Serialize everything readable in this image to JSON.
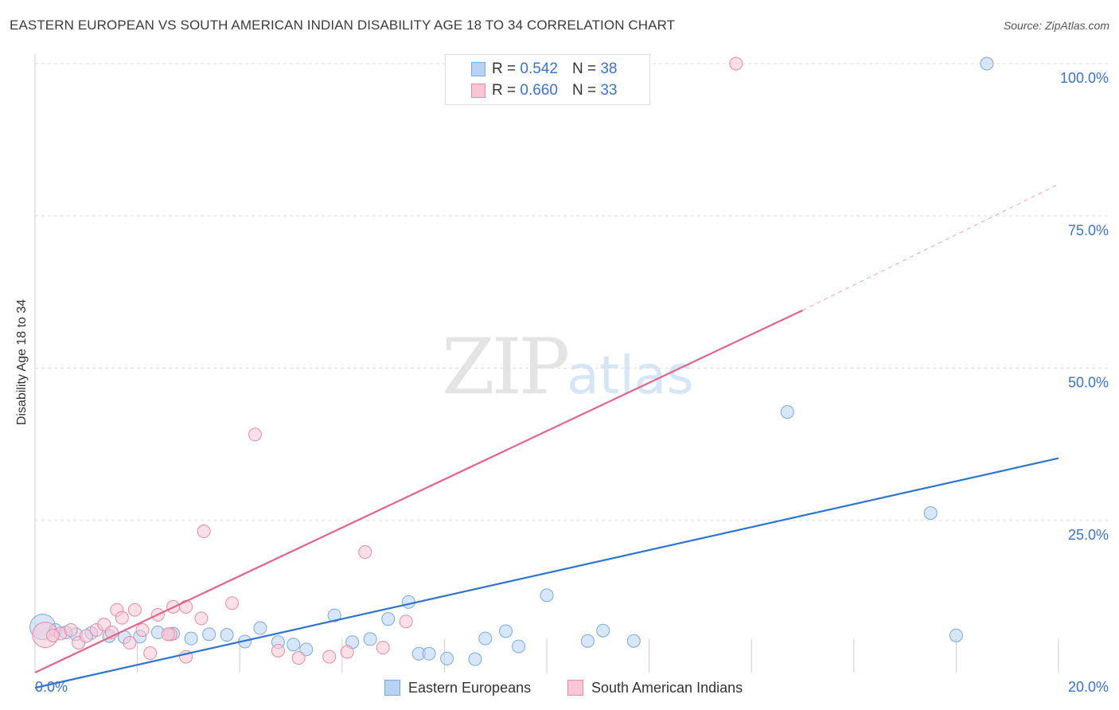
{
  "title": "EASTERN EUROPEAN VS SOUTH AMERICAN INDIAN DISABILITY AGE 18 TO 34 CORRELATION CHART",
  "source": "Source: ZipAtlas.com",
  "watermark": {
    "zip": "ZIP",
    "atlas": "atlas"
  },
  "legend": {
    "r_label": "R =",
    "n_label": "N =",
    "rows": [
      {
        "name": "Eastern Europeans",
        "r": "0.542",
        "n": "38"
      },
      {
        "name": "South American Indians",
        "r": "0.660",
        "n": "33"
      }
    ]
  },
  "colors": {
    "blue_fill": "#b8d3f1",
    "blue_stroke": "#7aa8dd",
    "blue_line": "#2f73d2",
    "pink_fill": "#f8c6d4",
    "pink_stroke": "#e58aa8",
    "pink_line": "#e0648c",
    "grid": "#dddddd",
    "tick_text": "#3a74c7"
  },
  "chart_data": {
    "type": "scatter",
    "title": "EASTERN EUROPEAN VS SOUTH AMERICAN INDIAN DISABILITY AGE 18 TO 34 CORRELATION CHART",
    "xlabel": "",
    "ylabel": "Disability Age 18 to 34",
    "xlim": [
      0,
      20
    ],
    "ylim": [
      0,
      100
    ],
    "x_tick_labels": [
      {
        "value": 0,
        "label": "0.0%"
      },
      {
        "value": 20,
        "label": "20.0%"
      }
    ],
    "y_ticks": [
      {
        "value": 25,
        "label": "25.0%"
      },
      {
        "value": 50,
        "label": "50.0%"
      },
      {
        "value": 75,
        "label": "75.0%"
      },
      {
        "value": 100,
        "label": "100.0%"
      }
    ],
    "series": [
      {
        "name": "Eastern Europeans",
        "color": "blue",
        "points": [
          {
            "x": 0.15,
            "y": 7.5,
            "big": true
          },
          {
            "x": 0.4,
            "y": 7.0
          },
          {
            "x": 0.8,
            "y": 6.3
          },
          {
            "x": 1.1,
            "y": 6.5
          },
          {
            "x": 1.45,
            "y": 6.0
          },
          {
            "x": 1.75,
            "y": 5.8
          },
          {
            "x": 2.05,
            "y": 5.9
          },
          {
            "x": 2.4,
            "y": 6.6
          },
          {
            "x": 2.7,
            "y": 6.4
          },
          {
            "x": 3.05,
            "y": 5.6
          },
          {
            "x": 3.4,
            "y": 6.3
          },
          {
            "x": 3.75,
            "y": 6.2
          },
          {
            "x": 4.1,
            "y": 5.1
          },
          {
            "x": 4.4,
            "y": 7.3
          },
          {
            "x": 4.75,
            "y": 5.0
          },
          {
            "x": 5.05,
            "y": 4.6
          },
          {
            "x": 5.3,
            "y": 3.8
          },
          {
            "x": 5.85,
            "y": 9.4
          },
          {
            "x": 6.2,
            "y": 5.0
          },
          {
            "x": 6.55,
            "y": 5.5
          },
          {
            "x": 6.9,
            "y": 8.8
          },
          {
            "x": 7.3,
            "y": 11.6
          },
          {
            "x": 7.5,
            "y": 3.1
          },
          {
            "x": 7.7,
            "y": 3.1
          },
          {
            "x": 8.05,
            "y": 2.3
          },
          {
            "x": 8.6,
            "y": 2.2
          },
          {
            "x": 8.8,
            "y": 5.6
          },
          {
            "x": 9.2,
            "y": 6.8
          },
          {
            "x": 9.45,
            "y": 4.3
          },
          {
            "x": 10.0,
            "y": 12.7
          },
          {
            "x": 10.8,
            "y": 5.2
          },
          {
            "x": 11.1,
            "y": 6.9
          },
          {
            "x": 11.7,
            "y": 5.2
          },
          {
            "x": 14.7,
            "y": 42.8
          },
          {
            "x": 17.5,
            "y": 26.2
          },
          {
            "x": 18.0,
            "y": 6.1
          },
          {
            "x": 18.6,
            "y": 100.0
          },
          {
            "x": 0.6,
            "y": 6.6
          }
        ],
        "trendline": {
          "x0": 0,
          "y0": -2.5,
          "x1": 20,
          "y1": 35.2
        }
      },
      {
        "name": "South American Indians",
        "color": "pink",
        "points": [
          {
            "x": 0.2,
            "y": 6.2,
            "big": true
          },
          {
            "x": 0.5,
            "y": 6.4
          },
          {
            "x": 0.7,
            "y": 7.0
          },
          {
            "x": 0.85,
            "y": 4.9
          },
          {
            "x": 1.0,
            "y": 6.0
          },
          {
            "x": 1.2,
            "y": 7.0
          },
          {
            "x": 1.35,
            "y": 7.9
          },
          {
            "x": 1.6,
            "y": 10.3
          },
          {
            "x": 1.7,
            "y": 9.0
          },
          {
            "x": 1.85,
            "y": 4.9
          },
          {
            "x": 1.95,
            "y": 10.3
          },
          {
            "x": 2.1,
            "y": 7.0
          },
          {
            "x": 2.25,
            "y": 3.2
          },
          {
            "x": 2.4,
            "y": 9.5
          },
          {
            "x": 2.65,
            "y": 6.3
          },
          {
            "x": 2.7,
            "y": 10.8
          },
          {
            "x": 2.95,
            "y": 10.8
          },
          {
            "x": 2.95,
            "y": 2.6
          },
          {
            "x": 3.25,
            "y": 8.9
          },
          {
            "x": 3.3,
            "y": 23.2
          },
          {
            "x": 3.85,
            "y": 11.4
          },
          {
            "x": 4.3,
            "y": 39.1
          },
          {
            "x": 4.75,
            "y": 3.6
          },
          {
            "x": 5.15,
            "y": 2.4
          },
          {
            "x": 5.75,
            "y": 2.6
          },
          {
            "x": 6.1,
            "y": 3.4
          },
          {
            "x": 6.45,
            "y": 19.8
          },
          {
            "x": 6.8,
            "y": 4.1
          },
          {
            "x": 7.25,
            "y": 8.4
          },
          {
            "x": 0.35,
            "y": 6.1
          },
          {
            "x": 1.5,
            "y": 6.6
          },
          {
            "x": 2.6,
            "y": 6.3
          },
          {
            "x": 13.7,
            "y": 100.0
          }
        ],
        "trendline": {
          "x0": 0,
          "y0": 0.0,
          "x1": 15,
          "y1": 59.5,
          "dash_to_x": 20,
          "dash_to_y": 80.2
        }
      }
    ]
  }
}
